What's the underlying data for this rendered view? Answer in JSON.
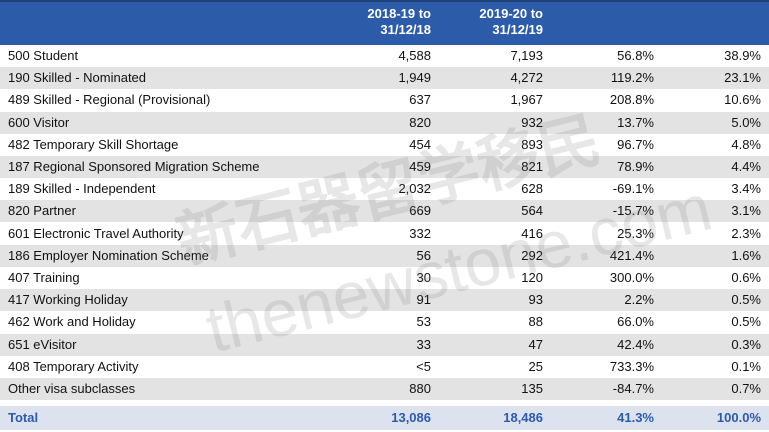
{
  "table": {
    "header": [
      [
        "2018-19 to",
        "31/12/18"
      ],
      [
        "2019-20 to",
        "31/12/19"
      ]
    ],
    "rows": [
      [
        "500 Student",
        "4,588",
        "7,193",
        "56.8%",
        "38.9%"
      ],
      [
        "190 Skilled - Nominated",
        "1,949",
        "4,272",
        "119.2%",
        "23.1%"
      ],
      [
        "489 Skilled - Regional (Provisional)",
        "637",
        "1,967",
        "208.8%",
        "10.6%"
      ],
      [
        "600 Visitor",
        "820",
        "932",
        "13.7%",
        "5.0%"
      ],
      [
        "482 Temporary Skill Shortage",
        "454",
        "893",
        "96.7%",
        "4.8%"
      ],
      [
        "187 Regional Sponsored Migration Scheme",
        "459",
        "821",
        "78.9%",
        "4.4%"
      ],
      [
        "189 Skilled - Independent",
        "2,032",
        "628",
        "-69.1%",
        "3.4%"
      ],
      [
        "820 Partner",
        "669",
        "564",
        "-15.7%",
        "3.1%"
      ],
      [
        "601 Electronic Travel Authority",
        "332",
        "416",
        "25.3%",
        "2.3%"
      ],
      [
        "186 Employer Nomination Scheme",
        "56",
        "292",
        "421.4%",
        "1.6%"
      ],
      [
        "407 Training",
        "30",
        "120",
        "300.0%",
        "0.6%"
      ],
      [
        "417 Working Holiday",
        "91",
        "93",
        "2.2%",
        "0.5%"
      ],
      [
        "462 Work and Holiday",
        "53",
        "88",
        "66.0%",
        "0.5%"
      ],
      [
        "651 eVisitor",
        "33",
        "47",
        "42.4%",
        "0.3%"
      ],
      [
        "408 Temporary Activity",
        "<5",
        "25",
        "733.3%",
        "0.1%"
      ],
      [
        "Other visa subclasses",
        "880",
        "135",
        "-84.7%",
        "0.7%"
      ]
    ],
    "total": [
      "Total",
      "13,086",
      "18,486",
      "41.3%",
      "100.0%"
    ]
  },
  "watermark": {
    "chinese": "新石器留学移民",
    "latin": "thenewstone.com"
  }
}
